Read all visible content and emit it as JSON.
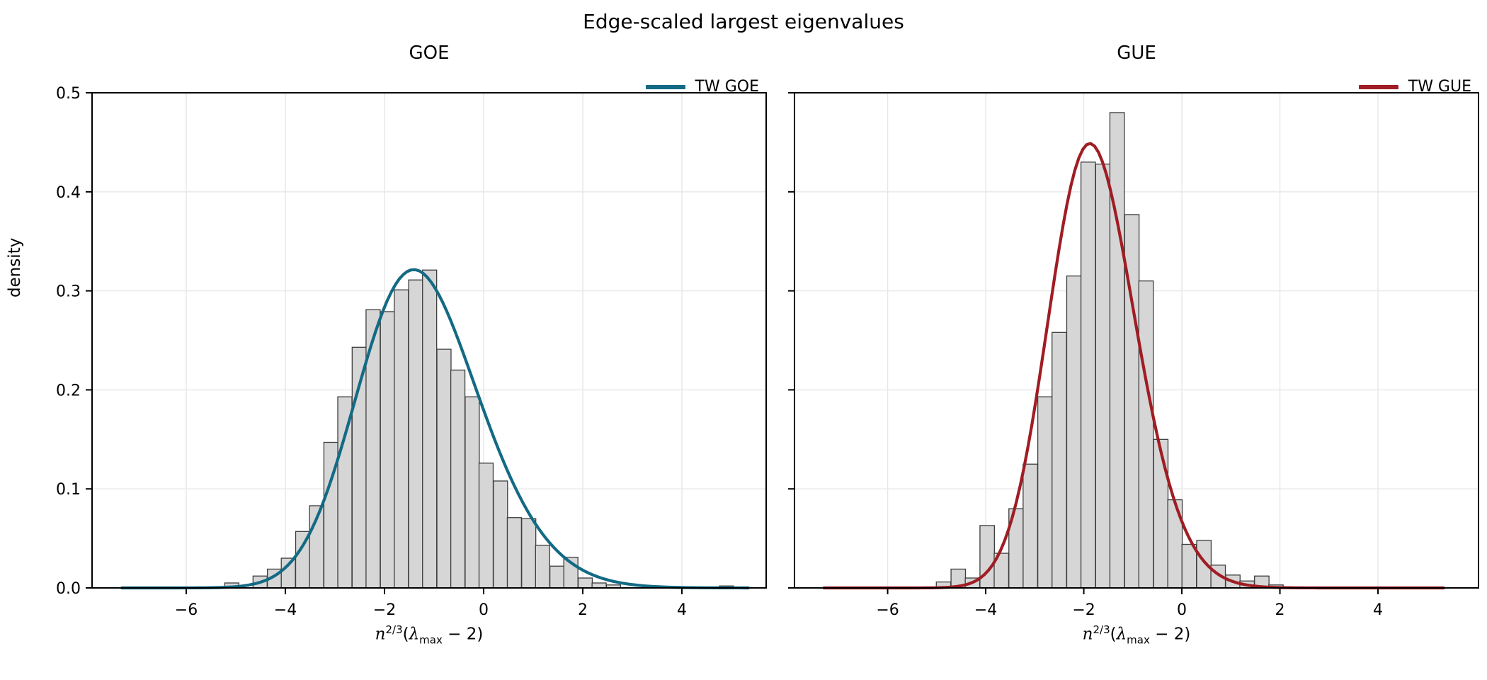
{
  "figure": {
    "suptitle": "Edge-scaled largest eigenvalues",
    "background": "#ffffff"
  },
  "axes_style": {
    "grid_color": "#e7e7e7",
    "spine_color": "#000000",
    "tick_color": "#000000",
    "tick_label_color": "#000000",
    "tick_label_fontsize": 22
  },
  "chart_data": [
    {
      "type": "histogram+line",
      "title": "GOE",
      "ylabel": "density",
      "xlabel_parts": {
        "var": "n",
        "exponent": "2/3",
        "open": "(",
        "lambda": "λ",
        "sub": "max",
        "close": " − 2)"
      },
      "legend": {
        "label": "TW GOE",
        "position": "upper right",
        "frame": false
      },
      "xlim": [
        -7.9,
        5.7
      ],
      "ylim": [
        0,
        0.5
      ],
      "xticks": [
        -6,
        -4,
        -2,
        0,
        2,
        4
      ],
      "yticks": [
        0.0,
        0.1,
        0.2,
        0.3,
        0.4,
        0.5
      ],
      "show_ytick_labels": true,
      "grid": true,
      "bar_width": 0.285,
      "bars": [
        [
          -5.08,
          0.005
        ],
        [
          -4.51,
          0.012
        ],
        [
          -4.22,
          0.019
        ],
        [
          -3.94,
          0.03
        ],
        [
          -3.65,
          0.057
        ],
        [
          -3.37,
          0.083
        ],
        [
          -3.08,
          0.147
        ],
        [
          -2.8,
          0.193
        ],
        [
          -2.51,
          0.243
        ],
        [
          -2.23,
          0.281
        ],
        [
          -1.94,
          0.279
        ],
        [
          -1.66,
          0.301
        ],
        [
          -1.37,
          0.311
        ],
        [
          -1.09,
          0.321
        ],
        [
          -0.8,
          0.241
        ],
        [
          -0.52,
          0.22
        ],
        [
          -0.23,
          0.193
        ],
        [
          0.05,
          0.126
        ],
        [
          0.34,
          0.108
        ],
        [
          0.62,
          0.071
        ],
        [
          0.91,
          0.07
        ],
        [
          1.19,
          0.043
        ],
        [
          1.48,
          0.022
        ],
        [
          1.76,
          0.031
        ],
        [
          2.05,
          0.01
        ],
        [
          2.33,
          0.005
        ],
        [
          2.62,
          0.003
        ],
        [
          4.9,
          0.002
        ]
      ],
      "tw_curve": {
        "model": "skew-normal approximation of Tracy-Widom beta=1",
        "xi": -2.327,
        "omega": 1.693,
        "alpha": 1.488,
        "x_from": -7.3,
        "x_to": 5.35,
        "peak_x": -1.27,
        "peak_density": 0.318
      },
      "colors": {
        "line": "#136a84",
        "bar_fill": "#d6d6d6",
        "bar_edge": "#3d3d3d"
      }
    },
    {
      "type": "histogram+line",
      "title": "GUE",
      "ylabel": "",
      "xlabel_parts": {
        "var": "n",
        "exponent": "2/3",
        "open": "(",
        "lambda": "λ",
        "sub": "max",
        "close": " − 2)"
      },
      "legend": {
        "label": "TW GUE",
        "position": "upper right",
        "frame": false
      },
      "xlim": [
        -7.9,
        6.05
      ],
      "ylim": [
        0,
        0.5
      ],
      "xticks": [
        -6,
        -4,
        -2,
        0,
        2,
        4
      ],
      "yticks": [
        0.0,
        0.1,
        0.2,
        0.3,
        0.4,
        0.5
      ],
      "show_ytick_labels": false,
      "grid": true,
      "bar_width": 0.295,
      "bars": [
        [
          -4.86,
          0.006
        ],
        [
          -4.56,
          0.019
        ],
        [
          -4.27,
          0.01
        ],
        [
          -3.97,
          0.063
        ],
        [
          -3.68,
          0.035
        ],
        [
          -3.38,
          0.08
        ],
        [
          -3.09,
          0.125
        ],
        [
          -2.79,
          0.193
        ],
        [
          -2.5,
          0.258
        ],
        [
          -2.2,
          0.315
        ],
        [
          -1.91,
          0.43
        ],
        [
          -1.61,
          0.428
        ],
        [
          -1.32,
          0.48
        ],
        [
          -1.02,
          0.377
        ],
        [
          -0.73,
          0.31
        ],
        [
          -0.43,
          0.15
        ],
        [
          -0.14,
          0.089
        ],
        [
          0.15,
          0.044
        ],
        [
          0.45,
          0.048
        ],
        [
          0.74,
          0.023
        ],
        [
          1.04,
          0.013
        ],
        [
          1.33,
          0.007
        ],
        [
          1.63,
          0.012
        ],
        [
          1.92,
          0.003
        ]
      ],
      "tw_curve": {
        "model": "skew-normal approximation of Tracy-Widom beta=2",
        "xi": -2.496,
        "omega": 1.157,
        "alpha": 1.267,
        "x_from": -7.3,
        "x_to": 5.35,
        "peak_x": -1.77,
        "peak_density": 0.445
      },
      "colors": {
        "line": "#9f1d23",
        "bar_fill": "#d6d6d6",
        "bar_edge": "#3d3d3d"
      }
    }
  ]
}
